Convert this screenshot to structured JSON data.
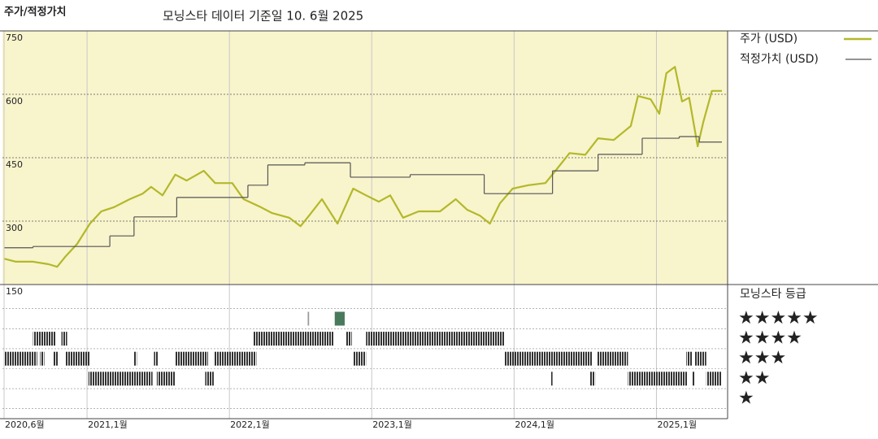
{
  "header": {
    "title": "주가/적정가치",
    "subtitle": "모닝스타 데이터 기준일 10. 6월 2025"
  },
  "chart_data": [
    {
      "type": "line",
      "xlim": [
        2020.417,
        2025.5
      ],
      "xticks": [
        {
          "value": 2020.417,
          "label": "2020,6월"
        },
        {
          "value": 2021,
          "label": "2021,1월"
        },
        {
          "value": 2022,
          "label": "2022,1월"
        },
        {
          "value": 2023,
          "label": "2023,1월"
        },
        {
          "value": 2024,
          "label": "2024,1월"
        },
        {
          "value": 2025,
          "label": "2025,1월"
        }
      ],
      "ylim": [
        150,
        750
      ],
      "yticks": [
        150,
        300,
        450,
        600,
        750
      ],
      "grid": true,
      "background": "#f8f4cc",
      "series": [
        {
          "name": "주가 (USD)",
          "color": "#b3b82a",
          "x": [
            2020.42,
            2020.5,
            2020.62,
            2020.73,
            2020.79,
            2020.85,
            2020.93,
            2021.02,
            2021.1,
            2021.19,
            2021.3,
            2021.39,
            2021.45,
            2021.53,
            2021.62,
            2021.7,
            2021.82,
            2021.9,
            2022.02,
            2022.1,
            2022.22,
            2022.3,
            2022.42,
            2022.5,
            2022.56,
            2022.65,
            2022.76,
            2022.87,
            2022.96,
            2023.05,
            2023.13,
            2023.22,
            2023.33,
            2023.48,
            2023.59,
            2023.67,
            2023.76,
            2023.83,
            2023.9,
            2023.99,
            2024.1,
            2024.22,
            2024.3,
            2024.39,
            2024.5,
            2024.59,
            2024.7,
            2024.82,
            2024.87,
            2024.96,
            2025.02,
            2025.07,
            2025.13,
            2025.18,
            2025.23,
            2025.29,
            2025.33,
            2025.39,
            2025.46
          ],
          "values": [
            211,
            204,
            204,
            198,
            192,
            217,
            246,
            294,
            323,
            333,
            352,
            365,
            381,
            361,
            410,
            396,
            419,
            390,
            390,
            352,
            333,
            319,
            308,
            288,
            313,
            352,
            294,
            377,
            361,
            346,
            361,
            308,
            323,
            323,
            352,
            327,
            313,
            294,
            342,
            377,
            385,
            390,
            423,
            461,
            457,
            496,
            492,
            525,
            596,
            588,
            554,
            650,
            665,
            583,
            592,
            477,
            535,
            608,
            608
          ]
        },
        {
          "name": "적정가치 (USD)",
          "color": "#555555",
          "step": true,
          "x": [
            2020.42,
            2020.62,
            2021.16,
            2021.33,
            2021.63,
            2022.13,
            2022.27,
            2022.53,
            2022.85,
            2023.27,
            2023.79,
            2024.27,
            2024.59,
            2024.9,
            2025.16,
            2025.3,
            2025.46
          ],
          "values": [
            237,
            240,
            265,
            310,
            356,
            385,
            433,
            438,
            404,
            410,
            365,
            419,
            458,
            496,
            500,
            487,
            487
          ]
        }
      ]
    },
    {
      "type": "rating",
      "title": "모닝스타 등급",
      "xlim": [
        2020.417,
        2025.5
      ],
      "level_labels": [
        "★★★★★",
        "★★★★",
        "★★★",
        "★★",
        "★"
      ],
      "color": "#333333",
      "periods": [
        {
          "start": 2022.55,
          "end": 2022.56,
          "stars": 5,
          "color": "#999999"
        },
        {
          "start": 2022.74,
          "end": 2022.81,
          "stars": 5,
          "color": "#4a7a5c"
        },
        {
          "start": 2020.62,
          "end": 2020.78,
          "stars": 4
        },
        {
          "start": 2020.82,
          "end": 2020.86,
          "stars": 4
        },
        {
          "start": 2022.17,
          "end": 2022.73,
          "stars": 4
        },
        {
          "start": 2022.82,
          "end": 2022.86,
          "stars": 4
        },
        {
          "start": 2022.96,
          "end": 2023.93,
          "stars": 4
        },
        {
          "start": 2020.42,
          "end": 2020.65,
          "stars": 3
        },
        {
          "start": 2020.67,
          "end": 2020.7,
          "stars": 3
        },
        {
          "start": 2020.76,
          "end": 2020.8,
          "stars": 3
        },
        {
          "start": 2020.85,
          "end": 2021.02,
          "stars": 3
        },
        {
          "start": 2021.33,
          "end": 2021.35,
          "stars": 3
        },
        {
          "start": 2021.47,
          "end": 2021.5,
          "stars": 3
        },
        {
          "start": 2021.62,
          "end": 2021.85,
          "stars": 3
        },
        {
          "start": 2021.89,
          "end": 2022.19,
          "stars": 3
        },
        {
          "start": 2022.87,
          "end": 2022.96,
          "stars": 3
        },
        {
          "start": 2023.93,
          "end": 2024.55,
          "stars": 3
        },
        {
          "start": 2024.58,
          "end": 2024.8,
          "stars": 3
        },
        {
          "start": 2025.21,
          "end": 2025.25,
          "stars": 3
        },
        {
          "start": 2025.27,
          "end": 2025.35,
          "stars": 3
        },
        {
          "start": 2021.01,
          "end": 2021.46,
          "stars": 2
        },
        {
          "start": 2021.49,
          "end": 2021.62,
          "stars": 2
        },
        {
          "start": 2021.83,
          "end": 2021.89,
          "stars": 2
        },
        {
          "start": 2024.26,
          "end": 2024.27,
          "stars": 2
        },
        {
          "start": 2024.53,
          "end": 2024.57,
          "stars": 2
        },
        {
          "start": 2024.8,
          "end": 2025.22,
          "stars": 2
        },
        {
          "start": 2025.25,
          "end": 2025.27,
          "stars": 2
        },
        {
          "start": 2025.35,
          "end": 2025.46,
          "stars": 2
        }
      ]
    }
  ]
}
